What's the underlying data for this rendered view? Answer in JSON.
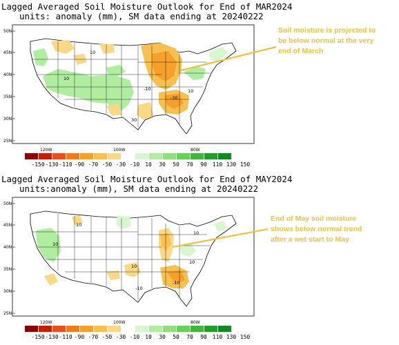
{
  "panels": [
    {
      "title_line1": "Lagged Averaged Soil Moisture Outlook for End of MAR2024",
      "title_line2": "units: anomaly (mm), SM data ending at 20240222",
      "callout": "Soil moisture is projected to be below normal at the very end of March",
      "lat_labels": [
        "50N",
        "45N",
        "40N",
        "35N",
        "30N",
        "25N"
      ],
      "lon_labels": [
        "120W",
        "100W",
        "80W"
      ],
      "contour_labels": [
        "10",
        "10",
        "-10",
        "-30",
        "10",
        "30"
      ]
    },
    {
      "title_line1": "Lagged Averaged Soil Moisture Outlook for End of MAY2024",
      "title_line2": "units:anomaly (mm), SM data ending at 20240222",
      "callout": "End of May soil moisture shows below normal trend after a wet start to May",
      "lat_labels": [
        "50N",
        "45N",
        "40N",
        "35N",
        "30N",
        "25N"
      ],
      "lon_labels": [
        "120W",
        "100W",
        "80W"
      ],
      "contour_labels": [
        "10",
        "10",
        "10",
        "-10",
        "-10",
        "10",
        "10"
      ]
    }
  ],
  "colorbar": {
    "labels": [
      "-150",
      "-130",
      "-110",
      "-90",
      "-70",
      "-50",
      "-30",
      "-10",
      "10",
      "30",
      "50",
      "70",
      "90",
      "110",
      "130",
      "150"
    ],
    "colors_dry": [
      "#8b0000",
      "#c81e00",
      "#e8501a",
      "#f07a1e",
      "#f5a02a",
      "#f8c050",
      "#fbd888",
      "#ffffff"
    ],
    "colors_wet": [
      "#d8f7d0",
      "#b0eda0",
      "#8ee07e",
      "#66d058",
      "#3fb83a",
      "#1f9e2a",
      "#0f8a20"
    ]
  },
  "colors": {
    "dry_light": "#fbd888",
    "dry_mid": "#f8c050",
    "dry_strong": "#f5a02a",
    "wet_light": "#b0eda0",
    "callout": "#f0c040"
  }
}
